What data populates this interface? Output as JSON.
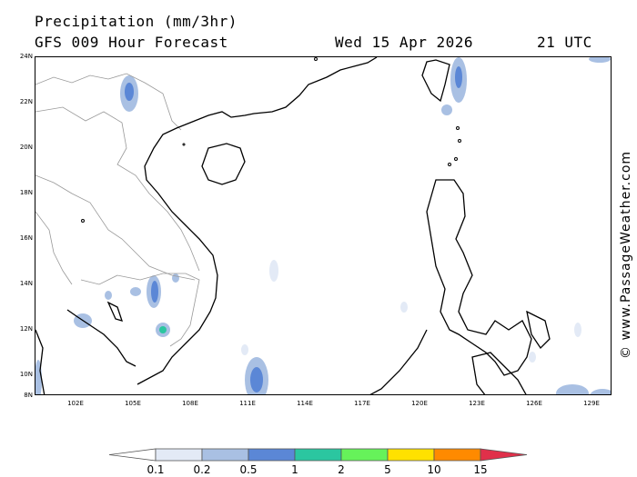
{
  "header": {
    "title": "Precipitation (mm/3hr)",
    "subtitle": "GFS 009 Hour Forecast",
    "date": "Wed 15 Apr 2026",
    "time": "21 UTC"
  },
  "map": {
    "lat_labels": [
      "24N",
      "22N",
      "20N",
      "18N",
      "16N",
      "14N",
      "12N",
      "10N",
      "8N"
    ],
    "lon_labels": [
      "102E",
      "105E",
      "108E",
      "111E",
      "114E",
      "117E",
      "120E",
      "123E",
      "126E",
      "129E"
    ],
    "land_outline_color": "#000000",
    "border_color": "#999999"
  },
  "credit": "© www.PassageWeather.com",
  "legend": {
    "labels": [
      "0.1",
      "0.2",
      "0.5",
      "1",
      "2",
      "5",
      "10",
      "15"
    ],
    "colors": [
      "#ffffff",
      "#e3eaf6",
      "#a9c0e3",
      "#5b87d6",
      "#2bc6a0",
      "#66f25a",
      "#ffe100",
      "#ff8a00",
      "#e0304a"
    ]
  }
}
